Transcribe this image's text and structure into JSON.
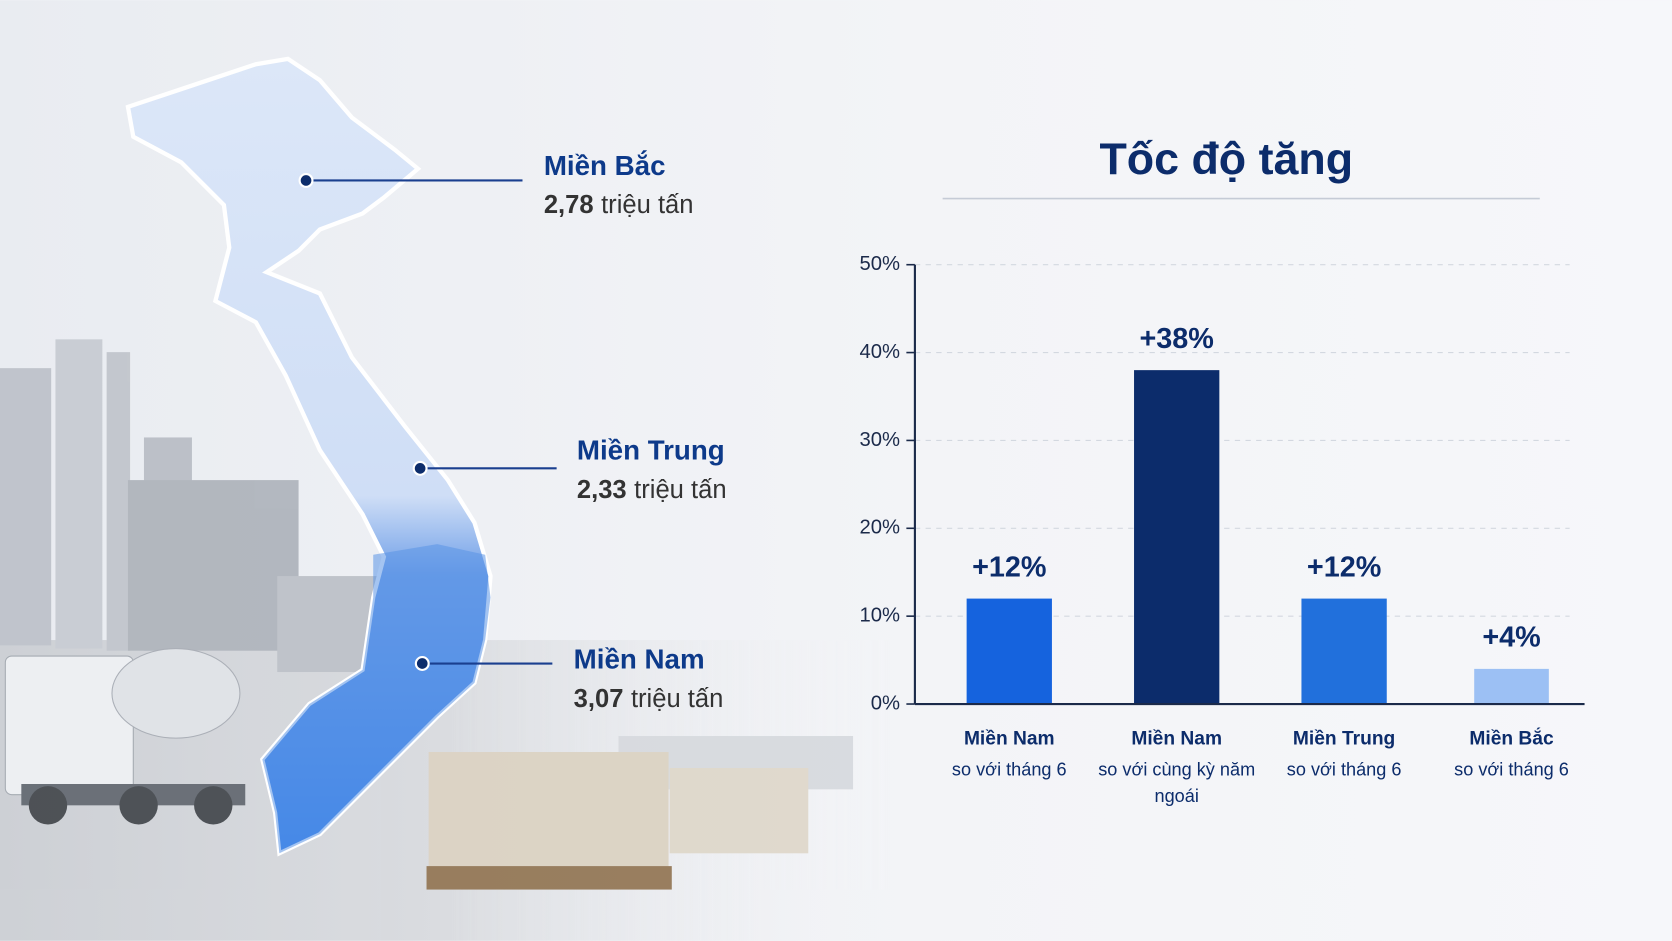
{
  "map": {
    "regions": [
      {
        "name": "Miền Bắc",
        "value": "2,78",
        "unit": "triệu tấn"
      },
      {
        "name": "Miền Trung",
        "value": "2,33",
        "unit": "triệu tấn"
      },
      {
        "name": "Miền Nam",
        "value": "3,07",
        "unit": "triệu tấn"
      }
    ]
  },
  "chart_data": {
    "type": "bar",
    "title": "Tốc độ tăng",
    "categories": [
      "Miền Nam",
      "Miền Nam",
      "Miền Trung",
      "Miền Bắc"
    ],
    "category_notes": [
      "so với tháng 6",
      "so với cùng kỳ năm ngoái",
      "so với tháng 6",
      "so với tháng 6"
    ],
    "values": [
      12,
      38,
      12,
      4
    ],
    "value_labels": [
      "+12%",
      "+38%",
      "+12%",
      "+4%"
    ],
    "colors": [
      "#1563de",
      "#0c2c6b",
      "#2170dc",
      "#9cc0f4"
    ],
    "ylim": [
      0,
      50
    ],
    "yticks": [
      {
        "value": 0,
        "label": "0%"
      },
      {
        "value": 10,
        "label": "10%"
      },
      {
        "value": 20,
        "label": "20%"
      },
      {
        "value": 30,
        "label": "30%"
      },
      {
        "value": 40,
        "label": "40%"
      },
      {
        "value": 50,
        "label": "50%"
      }
    ],
    "grid": true
  }
}
